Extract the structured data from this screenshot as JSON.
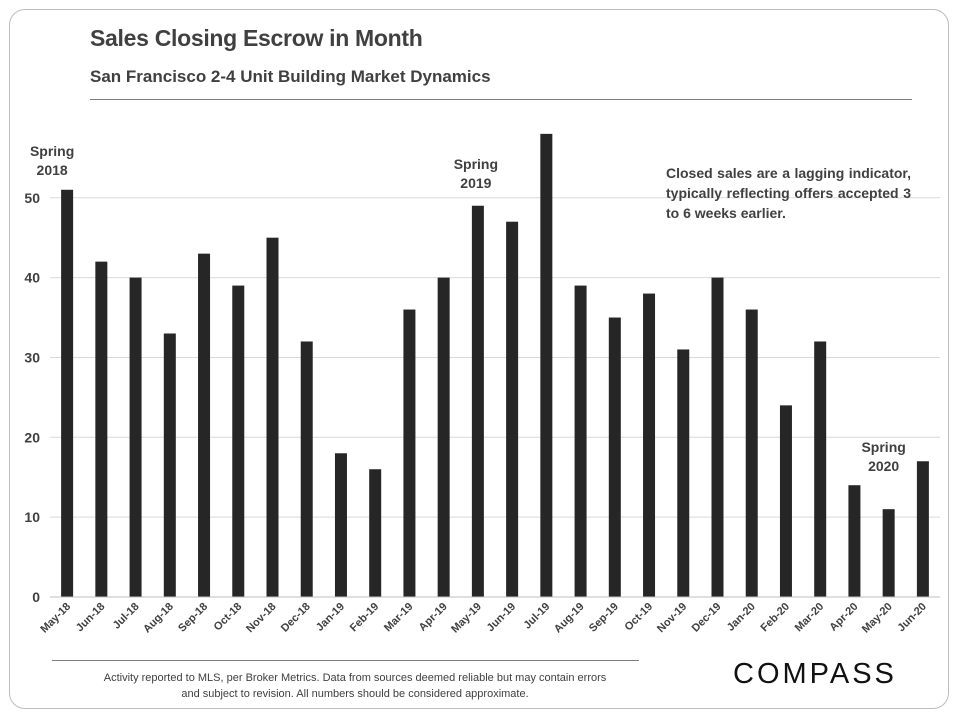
{
  "header": {
    "title": "Sales Closing Escrow in Month",
    "subtitle": "San Francisco 2-4 Unit Building Market Dynamics"
  },
  "chart_data": {
    "type": "bar",
    "title": "Sales Closing Escrow in Month",
    "subtitle": "San Francisco 2-4 Unit Building Market Dynamics",
    "xlabel": "",
    "ylabel": "",
    "categories": [
      "May-18",
      "Jun-18",
      "Jul-18",
      "Aug-18",
      "Sep-18",
      "Oct-18",
      "Nov-18",
      "Dec-18",
      "Jan-19",
      "Feb-19",
      "Mar-19",
      "Apr-19",
      "May-19",
      "Jun-19",
      "Jul-19",
      "Aug-19",
      "Sep-19",
      "Oct-19",
      "Nov-19",
      "Dec-19",
      "Jan-20",
      "Feb-20",
      "Mar-20",
      "Apr-20",
      "May-20",
      "Jun-20"
    ],
    "values": [
      51,
      42,
      40,
      33,
      43,
      39,
      45,
      32,
      18,
      16,
      36,
      40,
      49,
      47,
      58,
      39,
      35,
      38,
      31,
      40,
      36,
      24,
      32,
      14,
      11,
      17
    ],
    "ylim": [
      0,
      58
    ],
    "yticks": [
      0,
      10,
      20,
      30,
      40,
      50
    ],
    "grid": true,
    "bar_color": "#262626",
    "annotations": [
      {
        "lines": [
          "Spring",
          "2018"
        ],
        "category": "May-18"
      },
      {
        "lines": [
          "Spring",
          "2019"
        ],
        "category": "May-19"
      },
      {
        "lines": [
          "Spring",
          "2020"
        ],
        "category": "May-20"
      }
    ]
  },
  "note": "Closed sales are a lagging indicator, typically reflecting offers accepted 3 to 6 weeks earlier.",
  "footer": {
    "disclaimer": "Activity reported to MLS, per Broker Metrics. Data from sources deemed reliable but may contain errors and subject to revision. All numbers should be considered approximate.",
    "logo": "COMPASS"
  }
}
